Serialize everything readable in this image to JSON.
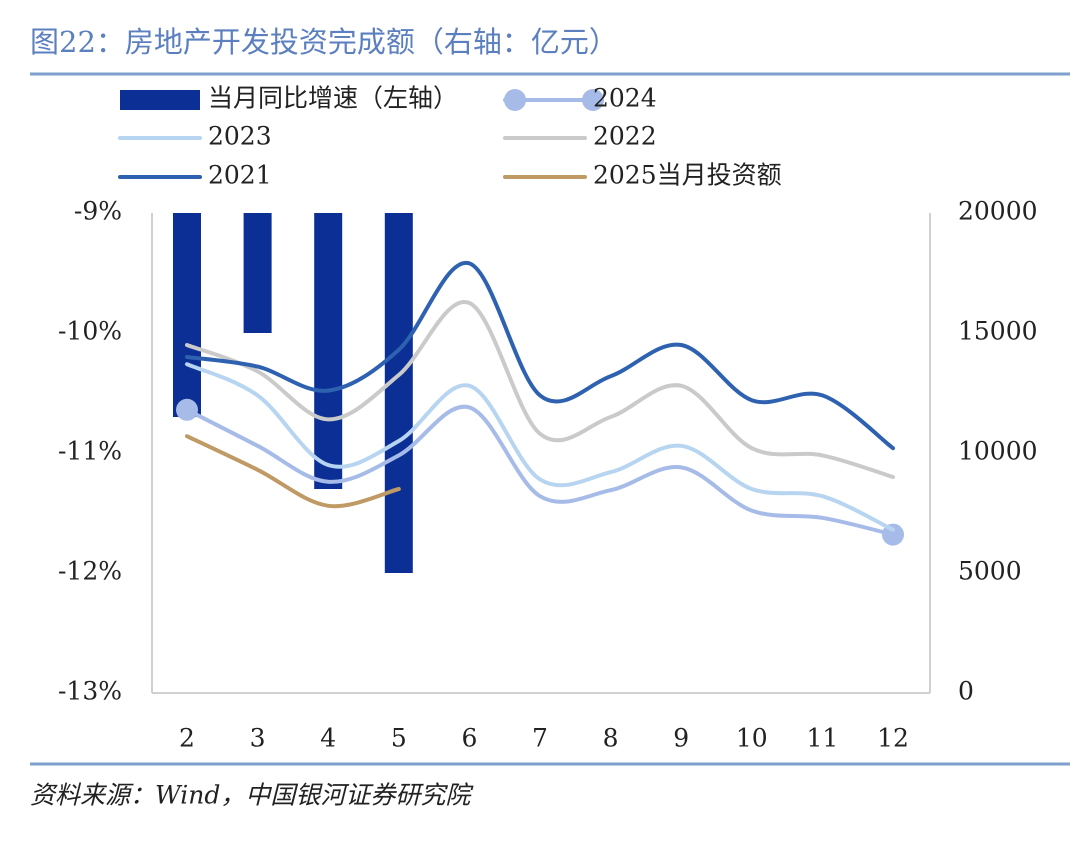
{
  "chart_data": {
    "type": "bar-line",
    "title": "图22：房地产开发投资完成额（右轴：亿元）",
    "source": "资料来源：Wind，中国银河证券研究院",
    "categories": [
      "2",
      "3",
      "4",
      "5",
      "6",
      "7",
      "8",
      "9",
      "10",
      "11",
      "12"
    ],
    "ylim": [
      -13,
      -9
    ],
    "yticks": [
      {
        "value": -9,
        "label": "-9%"
      },
      {
        "value": -10,
        "label": "-10%"
      },
      {
        "value": -11,
        "label": "-11%"
      },
      {
        "value": -12,
        "label": "-12%"
      },
      {
        "value": -13,
        "label": "-13%"
      }
    ],
    "y2lim": [
      0,
      20000
    ],
    "y2ticks": [
      20000,
      15000,
      10000,
      5000,
      0
    ],
    "grid": false,
    "series": [
      {
        "name": "当月同比增速（左轴）",
        "kind": "bar",
        "color": "#0b2f94",
        "values": [
          -10.7,
          -10.0,
          -11.3,
          -12.0,
          null,
          null,
          null,
          null,
          null,
          null,
          null
        ]
      },
      {
        "name": "2024",
        "kind": "line",
        "axis": "y2",
        "color": "#a6bbe8",
        "markers": true,
        "values": [
          11800,
          10300,
          8800,
          9900,
          11900,
          8200,
          8450,
          9400,
          7600,
          7300,
          6600
        ]
      },
      {
        "name": "2023",
        "kind": "line",
        "axis": "y2",
        "color": "#b7d5f0",
        "values": [
          13700,
          12400,
          9500,
          10500,
          12800,
          8900,
          9200,
          10300,
          8500,
          8200,
          6800
        ]
      },
      {
        "name": "2022",
        "kind": "line",
        "axis": "y2",
        "color": "#cacaca",
        "values": [
          14500,
          13400,
          11400,
          13250,
          16250,
          10800,
          11500,
          12800,
          10200,
          9900,
          9000
        ]
      },
      {
        "name": "2021",
        "kind": "line",
        "axis": "y2",
        "color": "#2e62b0",
        "values": [
          14000,
          13600,
          12600,
          14300,
          17900,
          12400,
          13200,
          14500,
          12200,
          12400,
          10200
        ]
      },
      {
        "name": "2025当月投资额",
        "kind": "line",
        "axis": "y2",
        "color": "#c09a65",
        "values": [
          10700,
          9300,
          7800,
          8500,
          null,
          null,
          null,
          null,
          null,
          null,
          null
        ]
      }
    ]
  }
}
